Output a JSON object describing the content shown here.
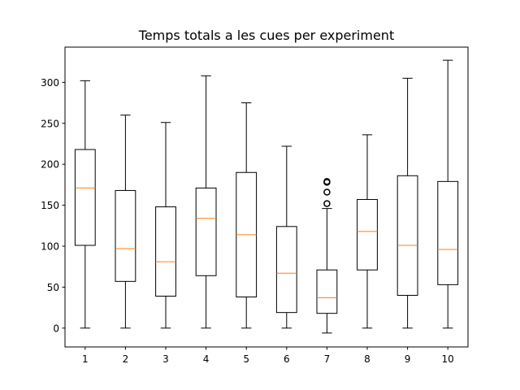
{
  "chart_data": {
    "type": "box",
    "title": "Temps totals a les cues per experiment",
    "xlabel": "",
    "ylabel": "",
    "categories": [
      "1",
      "2",
      "3",
      "4",
      "5",
      "6",
      "7",
      "8",
      "9",
      "10"
    ],
    "ylim": [
      -23,
      343
    ],
    "yticks": [
      0,
      50,
      100,
      150,
      200,
      250,
      300
    ],
    "ytick_labels": [
      "0",
      "50",
      "100",
      "150",
      "200",
      "250",
      "300"
    ],
    "boxes": [
      {
        "category": "1",
        "whisker_low": 0,
        "q1": 101,
        "median": 171,
        "q3": 218,
        "whisker_high": 302,
        "outliers": []
      },
      {
        "category": "2",
        "whisker_low": 0,
        "q1": 57,
        "median": 97,
        "q3": 168,
        "whisker_high": 260,
        "outliers": []
      },
      {
        "category": "3",
        "whisker_low": 0,
        "q1": 39,
        "median": 81,
        "q3": 148,
        "whisker_high": 251,
        "outliers": []
      },
      {
        "category": "4",
        "whisker_low": 0,
        "q1": 64,
        "median": 134,
        "q3": 171,
        "whisker_high": 308,
        "outliers": []
      },
      {
        "category": "5",
        "whisker_low": 0,
        "q1": 38,
        "median": 114,
        "q3": 190,
        "whisker_high": 275,
        "outliers": []
      },
      {
        "category": "6",
        "whisker_low": 0,
        "q1": 19,
        "median": 67,
        "q3": 124,
        "whisker_high": 222,
        "outliers": []
      },
      {
        "category": "7",
        "whisker_low": -6,
        "q1": 18,
        "median": 37,
        "q3": 71,
        "whisker_high": 146,
        "outliers": [
          152,
          166,
          178,
          179
        ]
      },
      {
        "category": "8",
        "whisker_low": 0,
        "q1": 71,
        "median": 118,
        "q3": 157,
        "whisker_high": 236,
        "outliers": []
      },
      {
        "category": "9",
        "whisker_low": 0,
        "q1": 40,
        "median": 101,
        "q3": 186,
        "whisker_high": 305,
        "outliers": []
      },
      {
        "category": "10",
        "whisker_low": 0,
        "q1": 53,
        "median": 96,
        "q3": 179,
        "whisker_high": 327,
        "outliers": []
      }
    ],
    "grid": false,
    "legend": "none",
    "colors": {
      "box": "#000000",
      "median": "#ff7f0e",
      "outlier": "#000000",
      "axes": "#000000",
      "background": "#ffffff"
    }
  }
}
